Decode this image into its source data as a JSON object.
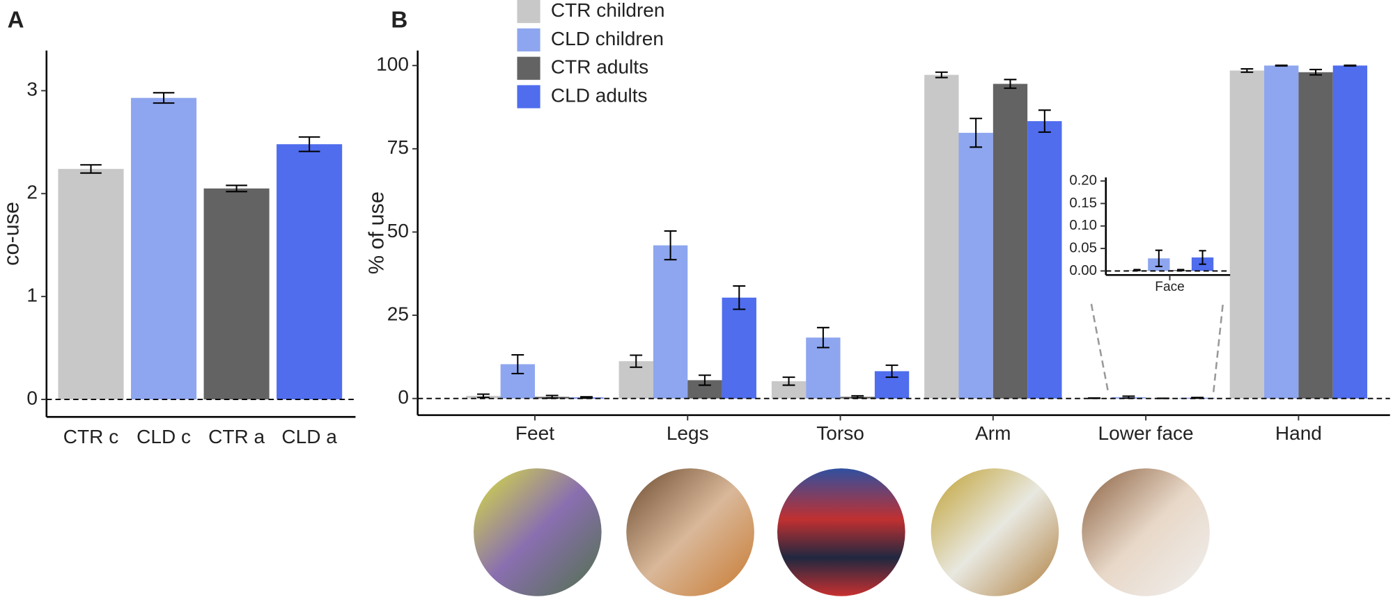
{
  "chart_data": [
    {
      "type": "bar",
      "panel": "A",
      "ylabel": "co-use",
      "categories": [
        "CTR c",
        "CLD c",
        "CTR a",
        "CLD a"
      ],
      "values": [
        2.24,
        2.93,
        2.05,
        2.48
      ],
      "errors": [
        0.04,
        0.05,
        0.03,
        0.07
      ],
      "colors": [
        "#c8c8c8",
        "#8ea6ef",
        "#636363",
        "#4f6ded"
      ],
      "ylim": [
        -0.17,
        3.39
      ],
      "yticks": [
        0,
        1,
        2,
        3
      ]
    },
    {
      "type": "grouped_bar",
      "panel": "B",
      "ylabel": "% of use",
      "categories": [
        "Feet",
        "Legs",
        "Torso",
        "Arm",
        "Lower face",
        "Hand"
      ],
      "series": [
        {
          "name": "CTR children",
          "color": "#c8c8c8",
          "values": [
            0.8,
            11.2,
            5.2,
            97.2,
            0.1,
            98.5
          ],
          "errors": [
            0.5,
            1.8,
            1.2,
            0.8,
            0.05,
            0.5
          ]
        },
        {
          "name": "CLD children",
          "color": "#8ea6ef",
          "values": [
            10.3,
            46,
            18.3,
            79.8,
            0.4,
            100
          ],
          "errors": [
            2.8,
            4.3,
            3.0,
            4.3,
            0.3,
            0.1
          ]
        },
        {
          "name": "CTR adults",
          "color": "#636363",
          "values": [
            0.5,
            5.5,
            0.5,
            94.5,
            0.05,
            98
          ],
          "errors": [
            0.4,
            1.5,
            0.3,
            1.3,
            0.03,
            0.8
          ]
        },
        {
          "name": "CLD adults",
          "color": "#4f6ded",
          "values": [
            0.3,
            30.3,
            8.2,
            83.3,
            0.2,
            100
          ],
          "errors": [
            0.2,
            3.5,
            1.8,
            3.3,
            0.1,
            0.1
          ]
        }
      ],
      "ylim": [
        -5,
        104.5
      ],
      "yticks": [
        0,
        25,
        50,
        75,
        100
      ]
    },
    {
      "type": "grouped_bar",
      "categories": [
        "Face"
      ],
      "series": [
        {
          "color": "#c8c8c8",
          "values": [
            0.002
          ],
          "errors": [
            0.001
          ]
        },
        {
          "color": "#8ea6ef",
          "values": [
            0.028
          ],
          "errors": [
            0.018
          ]
        },
        {
          "color": "#636363",
          "values": [
            0.002
          ],
          "errors": [
            0.001
          ]
        },
        {
          "color": "#4f6ded",
          "values": [
            0.03
          ],
          "errors": [
            0.015
          ]
        }
      ],
      "ylim": [
        -0.009,
        0.208
      ],
      "yticks": [
        {
          "value": 0,
          "label": "0.00"
        },
        {
          "value": 0.05,
          "label": "0.05"
        },
        {
          "value": 0.1,
          "label": "0.10"
        },
        {
          "value": 0.15,
          "label": "0.15"
        },
        {
          "value": 0.2,
          "label": "0.20"
        }
      ]
    }
  ]
}
